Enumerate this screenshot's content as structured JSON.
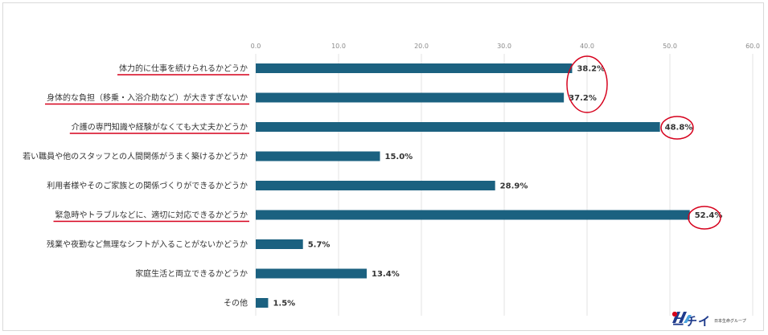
{
  "chart_data": {
    "type": "bar",
    "orientation": "horizontal",
    "xlim": [
      0,
      60
    ],
    "x_ticks": [
      "0.0",
      "10.0",
      "20.0",
      "30.0",
      "40.0",
      "50.0",
      "60.0"
    ],
    "x_tick_values": [
      0,
      10,
      20,
      30,
      40,
      50,
      60
    ],
    "grid": true,
    "bar_color": "#1b6180",
    "highlight_color": "#d6001c",
    "categories": [
      "体力的に仕事を続けられるかどうか",
      "身体的な負担（移乗・入浴介助など）が大きすぎないか",
      "介護の専門知識や経験がなくても大丈夫かどうか",
      "若い職員や他のスタッフとの人間関係がうまく築けるかどうか",
      "利用者様やそのご家族との関係づくりができるかどうか",
      "緊急時やトラブルなどに、適切に対応できるかどうか",
      "残業や夜勤など無理なシフトが入ることがないかどうか",
      "家庭生活と両立できるかどうか",
      "その他"
    ],
    "values": [
      38.2,
      37.2,
      48.8,
      15.0,
      28.9,
      52.4,
      5.7,
      13.4,
      1.5
    ],
    "value_labels": [
      "38.2%",
      "37.2%",
      "48.8%",
      "15.0%",
      "28.9%",
      "52.4%",
      "5.7%",
      "13.4%",
      "1.5%"
    ],
    "underlined": [
      true,
      true,
      true,
      false,
      false,
      true,
      false,
      false,
      false
    ]
  },
  "logo": {
    "text": "ニチイ",
    "subtext": "日本生命グループ",
    "icon": "nichii-logo-icon"
  }
}
